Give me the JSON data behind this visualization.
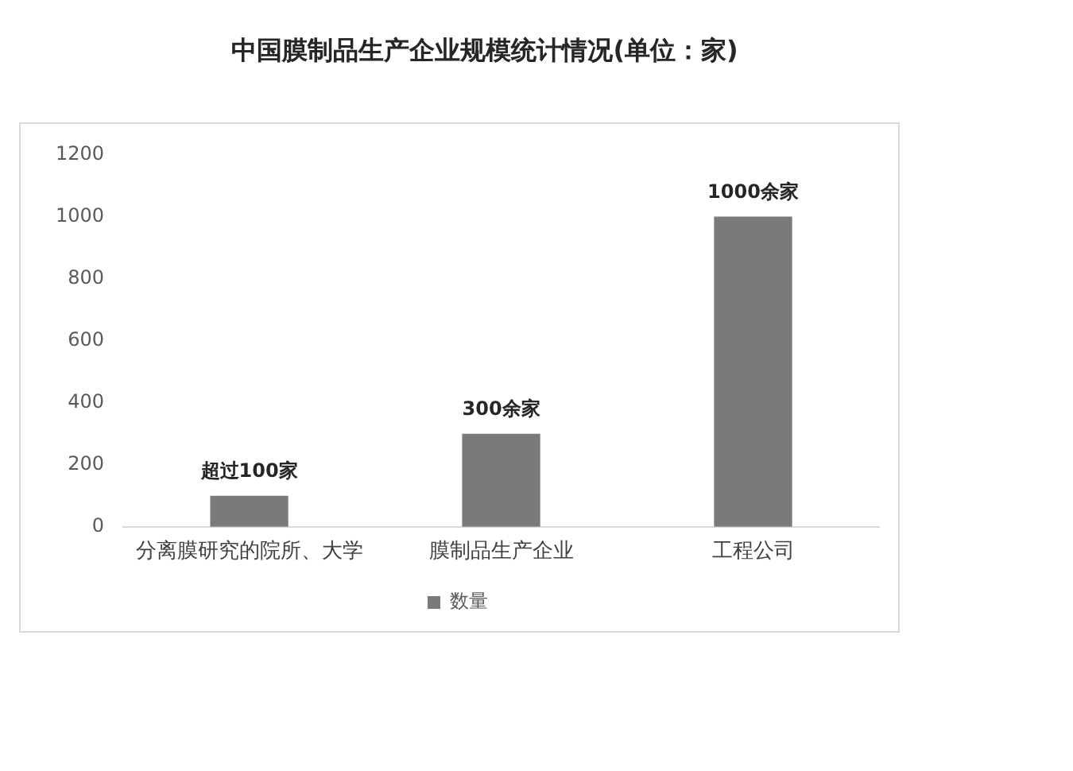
{
  "chart_data": {
    "type": "bar",
    "title": "中国膜制品生产企业规模统计情况(单位：家)",
    "categories": [
      "分离膜研究的院所、大学",
      "膜制品生产企业",
      "工程公司"
    ],
    "series": [
      {
        "name": "数量",
        "color": "#7a7a7a",
        "values": [
          100,
          300,
          1000
        ],
        "value_labels": [
          "超过100家",
          "300余家",
          "1000余家"
        ]
      }
    ],
    "ylim": [
      0,
      1200
    ],
    "yticks": [
      0,
      200,
      400,
      600,
      800,
      1000,
      1200
    ],
    "legend": "bottom"
  }
}
